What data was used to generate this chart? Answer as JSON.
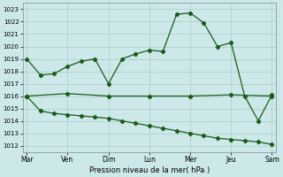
{
  "background_color": "#cce8e8",
  "grid_color": "#aacccc",
  "line_color": "#1a5c1a",
  "marker": "D",
  "markersize": 2.2,
  "linewidth": 0.9,
  "x_labels": [
    "Mar",
    "Ven",
    "Dim",
    "Lun",
    "Mer",
    "Jeu",
    "Sam"
  ],
  "x_ticks": [
    0,
    3,
    6,
    9,
    12,
    15,
    18
  ],
  "ylim": [
    1011.5,
    1023.5
  ],
  "yticks": [
    1012,
    1013,
    1014,
    1015,
    1016,
    1017,
    1018,
    1019,
    1020,
    1021,
    1022,
    1023
  ],
  "xlabel": "Pression niveau de la mer( hPa )",
  "series1_x": [
    0,
    1,
    2,
    3,
    4,
    5,
    6,
    7,
    8,
    9,
    10,
    11,
    12,
    13,
    14,
    15,
    16,
    17,
    18
  ],
  "series1_y": [
    1019.0,
    1017.7,
    1017.8,
    1018.4,
    1018.8,
    1019.0,
    1017.0,
    1019.0,
    1019.4,
    1019.7,
    1019.6,
    1022.6,
    1022.7,
    1021.9,
    1020.0,
    1020.3,
    1016.0,
    1014.0,
    1016.1
  ],
  "series2_x": [
    0,
    3,
    6,
    9,
    12,
    15,
    18
  ],
  "series2_y": [
    1016.0,
    1016.2,
    1016.0,
    1016.0,
    1016.0,
    1016.1,
    1016.0
  ],
  "series3_x": [
    0,
    1,
    2,
    3,
    4,
    5,
    6,
    7,
    8,
    9,
    10,
    11,
    12,
    13,
    14,
    15,
    16,
    17,
    18
  ],
  "series3_y": [
    1016.0,
    1014.8,
    1014.6,
    1014.5,
    1014.4,
    1014.3,
    1014.2,
    1014.0,
    1013.8,
    1013.6,
    1013.4,
    1013.2,
    1013.0,
    1012.8,
    1012.6,
    1012.5,
    1012.4,
    1012.3,
    1012.1
  ]
}
